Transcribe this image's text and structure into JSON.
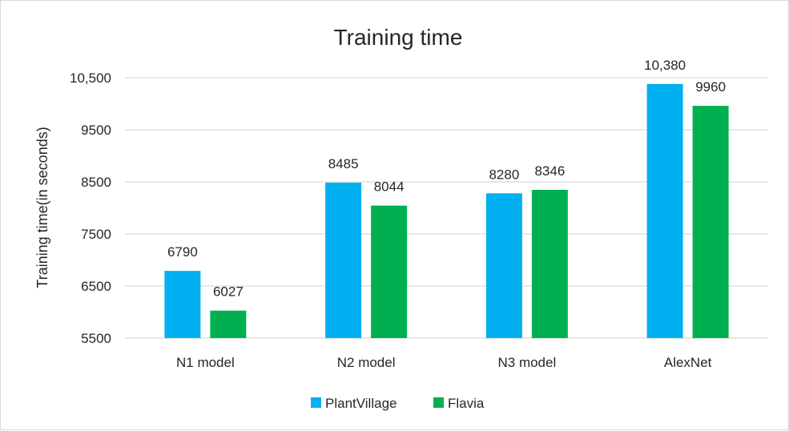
{
  "chart_data": {
    "type": "bar",
    "title": "Training time",
    "xlabel": "",
    "ylabel": "Training time(in seconds)",
    "categories": [
      "N1 model",
      "N2 model",
      "N3 model",
      "AlexNet"
    ],
    "series": [
      {
        "name": "PlantVillage",
        "color": "#00b0f0",
        "values": [
          6790,
          8485,
          8280,
          10380
        ],
        "labels": [
          "6790",
          "8485",
          "8280",
          "10,380"
        ]
      },
      {
        "name": "Flavia",
        "color": "#00b050",
        "values": [
          6027,
          8044,
          8346,
          9960
        ],
        "labels": [
          "6027",
          "8044",
          "8346",
          "9960"
        ]
      }
    ],
    "ylim": [
      5500,
      10500
    ],
    "yticks": [
      5500,
      6500,
      7500,
      8500,
      9500,
      10500
    ],
    "ytick_labels": [
      "5500",
      "6500",
      "7500",
      "8500",
      "9500",
      "10,500"
    ],
    "grid": true,
    "legend_position": "bottom",
    "gridline_color": "#d9d9d9"
  }
}
